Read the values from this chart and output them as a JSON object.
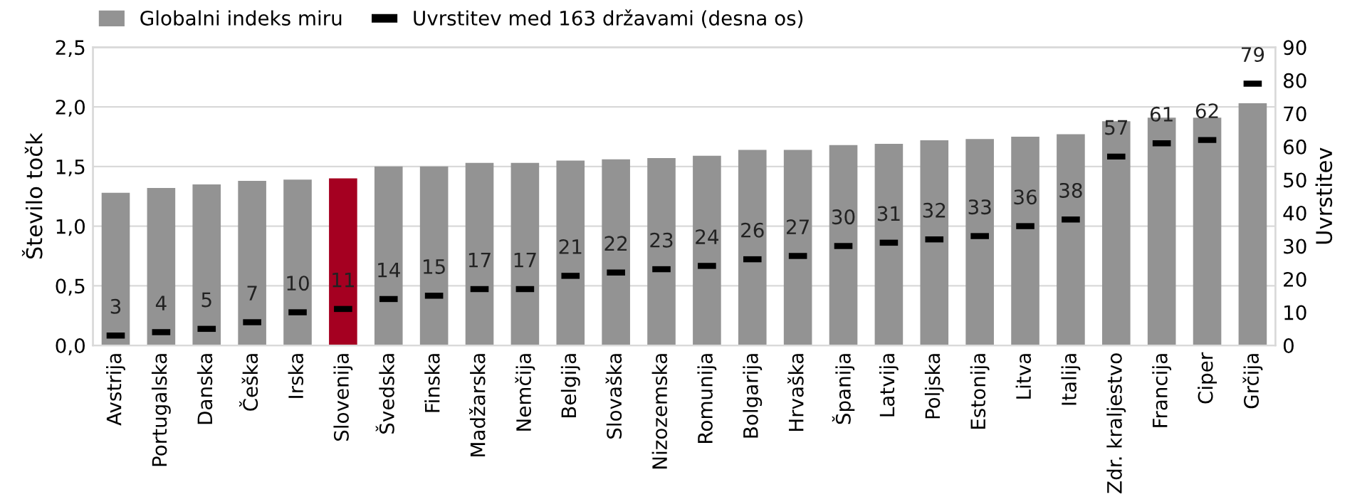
{
  "chart_data": {
    "type": "bar",
    "ylabel": "Število točk",
    "y2label": "Uvrstitev",
    "categories": [
      "Avstrija",
      "Portugalska",
      "Danska",
      "Češka",
      "Irska",
      "Slovenija",
      "Švedska",
      "Finska",
      "Madžarska",
      "Nemčija",
      "Belgija",
      "Slovaška",
      "Nizozemska",
      "Romunija",
      "Bolgarija",
      "Hrvaška",
      "Španija",
      "Latvija",
      "Poljska",
      "Estonija",
      "Litva",
      "Italija",
      "Zdr. kraljestvo",
      "Francija",
      "Ciper",
      "Grčija"
    ],
    "series": [
      {
        "name": "Globalni indeks miru",
        "color": "#939393",
        "colors": [
          "#939393",
          "#939393",
          "#939393",
          "#939393",
          "#939393",
          "#a50021",
          "#939393",
          "#939393",
          "#939393",
          "#939393",
          "#939393",
          "#939393",
          "#939393",
          "#939393",
          "#939393",
          "#939393",
          "#939393",
          "#939393",
          "#939393",
          "#939393",
          "#939393",
          "#939393",
          "#939393",
          "#939393",
          "#939393",
          "#939393"
        ],
        "values": [
          1.28,
          1.32,
          1.35,
          1.38,
          1.39,
          1.4,
          1.5,
          1.5,
          1.53,
          1.53,
          1.55,
          1.56,
          1.57,
          1.59,
          1.64,
          1.64,
          1.68,
          1.69,
          1.72,
          1.73,
          1.75,
          1.77,
          1.88,
          1.91,
          1.91,
          2.03
        ]
      },
      {
        "name": "Uvrstitev med 163 državami (desna os)",
        "type": "scatter",
        "axis": "y2",
        "color": "#000000",
        "data_labels": true,
        "values": [
          3,
          4,
          5,
          7,
          10,
          11,
          14,
          15,
          17,
          17,
          21,
          22,
          23,
          24,
          26,
          27,
          30,
          31,
          32,
          33,
          36,
          38,
          57,
          61,
          62,
          79
        ]
      }
    ],
    "ylim": [
      0,
      2.5
    ],
    "yticks": [
      {
        "value": 0,
        "label": "0,0"
      },
      {
        "value": 0.5,
        "label": "0,5"
      },
      {
        "value": 1,
        "label": "1,0"
      },
      {
        "value": 1.5,
        "label": "1,5"
      },
      {
        "value": 2,
        "label": "2,0"
      },
      {
        "value": 2.5,
        "label": "2,5"
      }
    ],
    "y2lim": [
      0,
      90
    ],
    "y2ticks": [
      0,
      10,
      20,
      30,
      40,
      50,
      60,
      70,
      80,
      90
    ],
    "grid": "y",
    "legend": "top left"
  }
}
